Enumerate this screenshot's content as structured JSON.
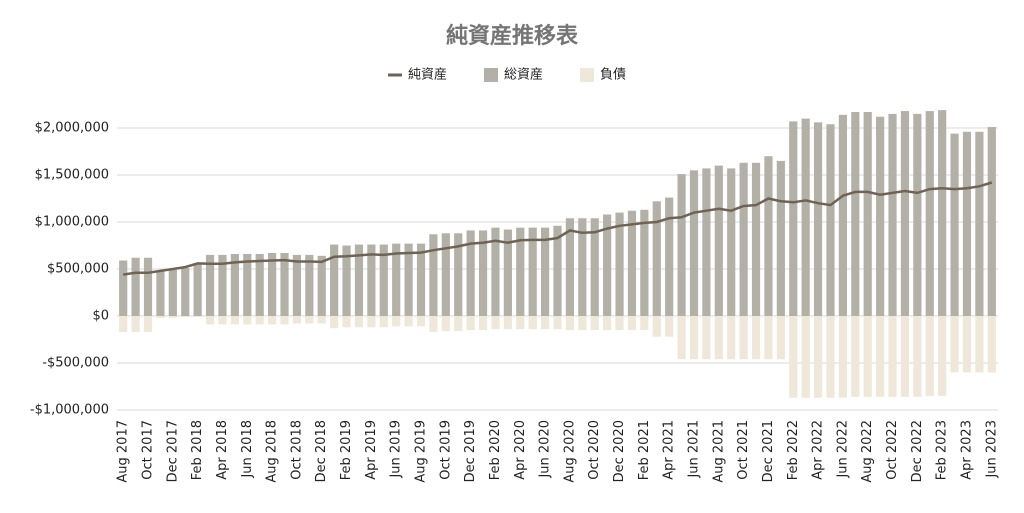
{
  "chart_data": {
    "type": "bar-line",
    "title": "純資産推移表",
    "categories": [
      "Aug 2017",
      null,
      "Oct 2017",
      null,
      "Dec 2017",
      null,
      "Feb 2018",
      null,
      "Apr 2018",
      null,
      "Jun 2018",
      null,
      "Aug 2018",
      null,
      "Oct 2018",
      null,
      "Dec 2018",
      null,
      "Feb 2019",
      null,
      "Apr 2019",
      null,
      "Jun 2019",
      null,
      "Aug 2019",
      null,
      "Oct 2019",
      null,
      "Dec 2019",
      null,
      "Feb 2020",
      null,
      "Apr 2020",
      null,
      "Jun 2020",
      null,
      "Aug 2020",
      null,
      "Oct 2020",
      null,
      "Dec 2020",
      null,
      "Feb 2021",
      null,
      "Apr 2021",
      null,
      "Jun 2021",
      null,
      "Aug 2021",
      null,
      "Oct 2021",
      null,
      "Dec 2021",
      null,
      "Feb 2022",
      null,
      "Apr 2022",
      null,
      "Jun 2022",
      null,
      "Aug 2022",
      null,
      "Oct 2022",
      null,
      "Dec 2022",
      null,
      "Feb 2023",
      null,
      "Apr 2023",
      null,
      "Jun 2023"
    ],
    "series": [
      {
        "name": "純資産",
        "type": "line",
        "color": "#6f6357",
        "values": [
          440000,
          460000,
          460000,
          480000,
          500000,
          520000,
          560000,
          555000,
          555000,
          570000,
          580000,
          585000,
          590000,
          595000,
          580000,
          580000,
          575000,
          630000,
          635000,
          645000,
          655000,
          650000,
          665000,
          670000,
          675000,
          700000,
          720000,
          740000,
          770000,
          780000,
          800000,
          780000,
          805000,
          810000,
          810000,
          830000,
          910000,
          885000,
          890000,
          930000,
          960000,
          975000,
          990000,
          1000000,
          1040000,
          1050000,
          1100000,
          1120000,
          1140000,
          1120000,
          1170000,
          1180000,
          1250000,
          1220000,
          1210000,
          1230000,
          1200000,
          1180000,
          1280000,
          1320000,
          1320000,
          1290000,
          1310000,
          1330000,
          1310000,
          1350000,
          1360000,
          1350000,
          1360000,
          1380000,
          1420000
        ]
      },
      {
        "name": "総資産",
        "type": "bar",
        "color": "#b3b0a8",
        "values": [
          590000,
          620000,
          620000,
          480000,
          490000,
          510000,
          560000,
          650000,
          650000,
          660000,
          660000,
          660000,
          670000,
          670000,
          650000,
          650000,
          640000,
          760000,
          750000,
          760000,
          760000,
          760000,
          770000,
          770000,
          770000,
          870000,
          880000,
          880000,
          910000,
          910000,
          940000,
          920000,
          940000,
          940000,
          940000,
          960000,
          1040000,
          1040000,
          1040000,
          1080000,
          1100000,
          1120000,
          1130000,
          1220000,
          1260000,
          1510000,
          1550000,
          1570000,
          1600000,
          1570000,
          1630000,
          1630000,
          1700000,
          1650000,
          2070000,
          2100000,
          2060000,
          2040000,
          2140000,
          2170000,
          2170000,
          2120000,
          2150000,
          2180000,
          2150000,
          2180000,
          2190000,
          1940000,
          1960000,
          1960000,
          2010000
        ]
      },
      {
        "name": "負債",
        "type": "bar",
        "color": "#efe7da",
        "values": [
          -170000,
          -170000,
          -170000,
          -20000,
          -20000,
          -10000,
          0,
          -90000,
          -90000,
          -90000,
          -90000,
          -90000,
          -90000,
          -90000,
          -80000,
          -80000,
          -80000,
          -130000,
          -120000,
          -120000,
          -120000,
          -120000,
          -110000,
          -110000,
          -110000,
          -170000,
          -160000,
          -160000,
          -150000,
          -150000,
          -140000,
          -140000,
          -140000,
          -140000,
          -140000,
          -140000,
          -150000,
          -150000,
          -150000,
          -150000,
          -150000,
          -150000,
          -150000,
          -220000,
          -220000,
          -460000,
          -460000,
          -460000,
          -460000,
          -460000,
          -460000,
          -460000,
          -460000,
          -460000,
          -870000,
          -870000,
          -870000,
          -870000,
          -870000,
          -860000,
          -860000,
          -860000,
          -860000,
          -860000,
          -860000,
          -850000,
          -850000,
          -600000,
          -600000,
          -600000,
          -600000
        ]
      }
    ],
    "ylim": [
      -1000000,
      2250000
    ],
    "yticks": [
      {
        "value": -1000000,
        "label": "-$1,000,000"
      },
      {
        "value": -500000,
        "label": "-$500,000"
      },
      {
        "value": 0,
        "label": "$0"
      },
      {
        "value": 500000,
        "label": "$500,000"
      },
      {
        "value": 1000000,
        "label": "$1,000,000"
      },
      {
        "value": 1500000,
        "label": "$1,500,000"
      },
      {
        "value": 2000000,
        "label": "$2,000,000"
      }
    ],
    "grid": true
  }
}
